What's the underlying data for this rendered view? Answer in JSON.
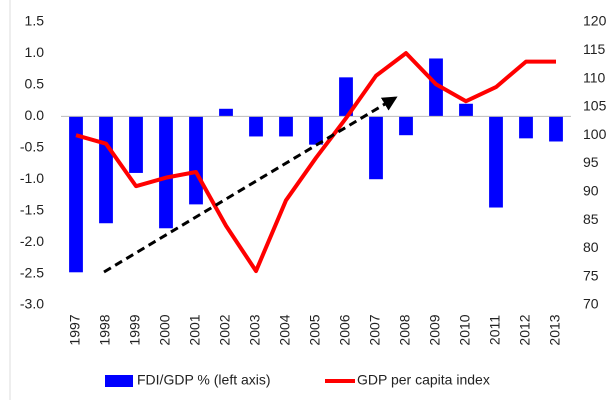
{
  "chart_data": {
    "type": "bar_line",
    "categories": [
      "1997",
      "1998",
      "1999",
      "2000",
      "2001",
      "2002",
      "2003",
      "2004",
      "2005",
      "2006",
      "2007",
      "2008",
      "2009",
      "2010",
      "2011",
      "2012",
      "2013"
    ],
    "series": [
      {
        "name": "FDI/GDP % (left axis)",
        "type": "bar",
        "color": "#0000ff",
        "axis": "y",
        "values": [
          -2.48,
          -1.7,
          -0.9,
          -1.78,
          -1.4,
          0.12,
          -0.32,
          -0.32,
          -0.45,
          0.62,
          -1.0,
          -0.3,
          0.92,
          0.2,
          -1.45,
          -0.35,
          -0.4
        ]
      },
      {
        "name": "GDP per capita index",
        "type": "line",
        "color": "#ff0000",
        "axis": "y2",
        "values": [
          100,
          98.5,
          91,
          92.5,
          93.5,
          84,
          76,
          88.5,
          96,
          103,
          110.5,
          114.5,
          109,
          106,
          108.5,
          113,
          113
        ]
      }
    ],
    "ylim": [
      -3,
      1.5
    ],
    "yticks": [
      1.5,
      {
        "value": 1,
        "label": "1.0"
      },
      0.5,
      {
        "value": 0,
        "label": "0.0"
      },
      -0.5,
      {
        "value": -1,
        "label": "-1.0"
      },
      -1.5,
      {
        "value": -2,
        "label": "-2.0"
      },
      -2.5,
      {
        "value": -3,
        "label": "-3.0"
      }
    ],
    "y2lim": [
      70,
      120
    ],
    "y2ticks": [
      120,
      115,
      110,
      105,
      100,
      95,
      90,
      85,
      80,
      75,
      70
    ],
    "legend": "bottom"
  }
}
